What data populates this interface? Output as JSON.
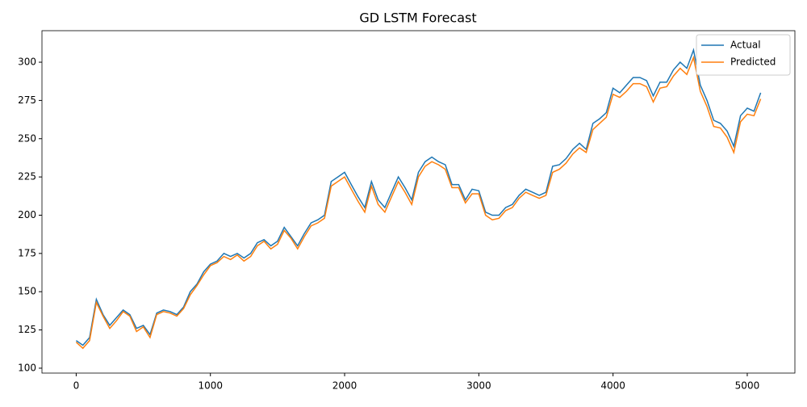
{
  "chart_data": {
    "type": "line",
    "title": "GD LSTM Forecast",
    "x": [
      0,
      50,
      100,
      150,
      200,
      250,
      300,
      350,
      400,
      450,
      500,
      550,
      600,
      650,
      700,
      750,
      800,
      850,
      900,
      950,
      1000,
      1050,
      1100,
      1150,
      1200,
      1250,
      1300,
      1350,
      1400,
      1450,
      1500,
      1550,
      1600,
      1650,
      1700,
      1750,
      1800,
      1850,
      1900,
      1950,
      2000,
      2050,
      2100,
      2150,
      2200,
      2250,
      2300,
      2350,
      2400,
      2450,
      2500,
      2550,
      2600,
      2650,
      2700,
      2750,
      2800,
      2850,
      2900,
      2950,
      3000,
      3050,
      3100,
      3150,
      3200,
      3250,
      3300,
      3350,
      3400,
      3450,
      3500,
      3550,
      3600,
      3650,
      3700,
      3750,
      3800,
      3850,
      3900,
      3950,
      4000,
      4050,
      4100,
      4150,
      4200,
      4250,
      4300,
      4350,
      4400,
      4450,
      4500,
      4550,
      4600,
      4650,
      4700,
      4750,
      4800,
      4850,
      4900,
      4950,
      5000,
      5050,
      5100
    ],
    "series": [
      {
        "name": "Actual",
        "color": "#1f77b4",
        "values": [
          118,
          115,
          120,
          145,
          135,
          128,
          133,
          138,
          135,
          126,
          128,
          122,
          136,
          138,
          137,
          135,
          140,
          150,
          155,
          163,
          168,
          170,
          175,
          173,
          175,
          172,
          175,
          182,
          184,
          180,
          183,
          192,
          186,
          180,
          188,
          195,
          197,
          200,
          222,
          225,
          228,
          220,
          212,
          205,
          222,
          210,
          205,
          215,
          225,
          218,
          210,
          228,
          235,
          238,
          235,
          233,
          220,
          220,
          210,
          217,
          216,
          202,
          200,
          200,
          205,
          207,
          213,
          217,
          215,
          213,
          215,
          232,
          233,
          237,
          243,
          247,
          243,
          260,
          263,
          267,
          283,
          280,
          285,
          290,
          290,
          288,
          278,
          287,
          287,
          295,
          300,
          296,
          308,
          285,
          275,
          262,
          260,
          255,
          245,
          265,
          270,
          268,
          280
        ]
      },
      {
        "name": "Predicted",
        "color": "#ff7f0e",
        "values": [
          117,
          113,
          118,
          143,
          134,
          126,
          131,
          137,
          134,
          124,
          127,
          120,
          135,
          137,
          136,
          134,
          139,
          148,
          154,
          161,
          167,
          169,
          173,
          171,
          174,
          170,
          173,
          180,
          183,
          178,
          181,
          190,
          185,
          178,
          186,
          193,
          195,
          198,
          219,
          222,
          225,
          217,
          209,
          202,
          219,
          207,
          202,
          212,
          222,
          215,
          207,
          225,
          232,
          235,
          233,
          230,
          218,
          218,
          208,
          214,
          214,
          200,
          197,
          198,
          203,
          205,
          211,
          215,
          213,
          211,
          213,
          228,
          230,
          234,
          240,
          244,
          241,
          256,
          260,
          264,
          279,
          277,
          281,
          286,
          286,
          284,
          274,
          283,
          284,
          291,
          296,
          292,
          303,
          281,
          271,
          258,
          257,
          251,
          241,
          261,
          266,
          265,
          276
        ]
      }
    ],
    "xlim": [
      -255,
      5355
    ],
    "ylim": [
      96.8,
      320.6
    ],
    "xticks": [
      0,
      1000,
      2000,
      3000,
      4000,
      5000
    ],
    "yticks": [
      100,
      125,
      150,
      175,
      200,
      225,
      250,
      275,
      300
    ],
    "legend": "upper right"
  }
}
